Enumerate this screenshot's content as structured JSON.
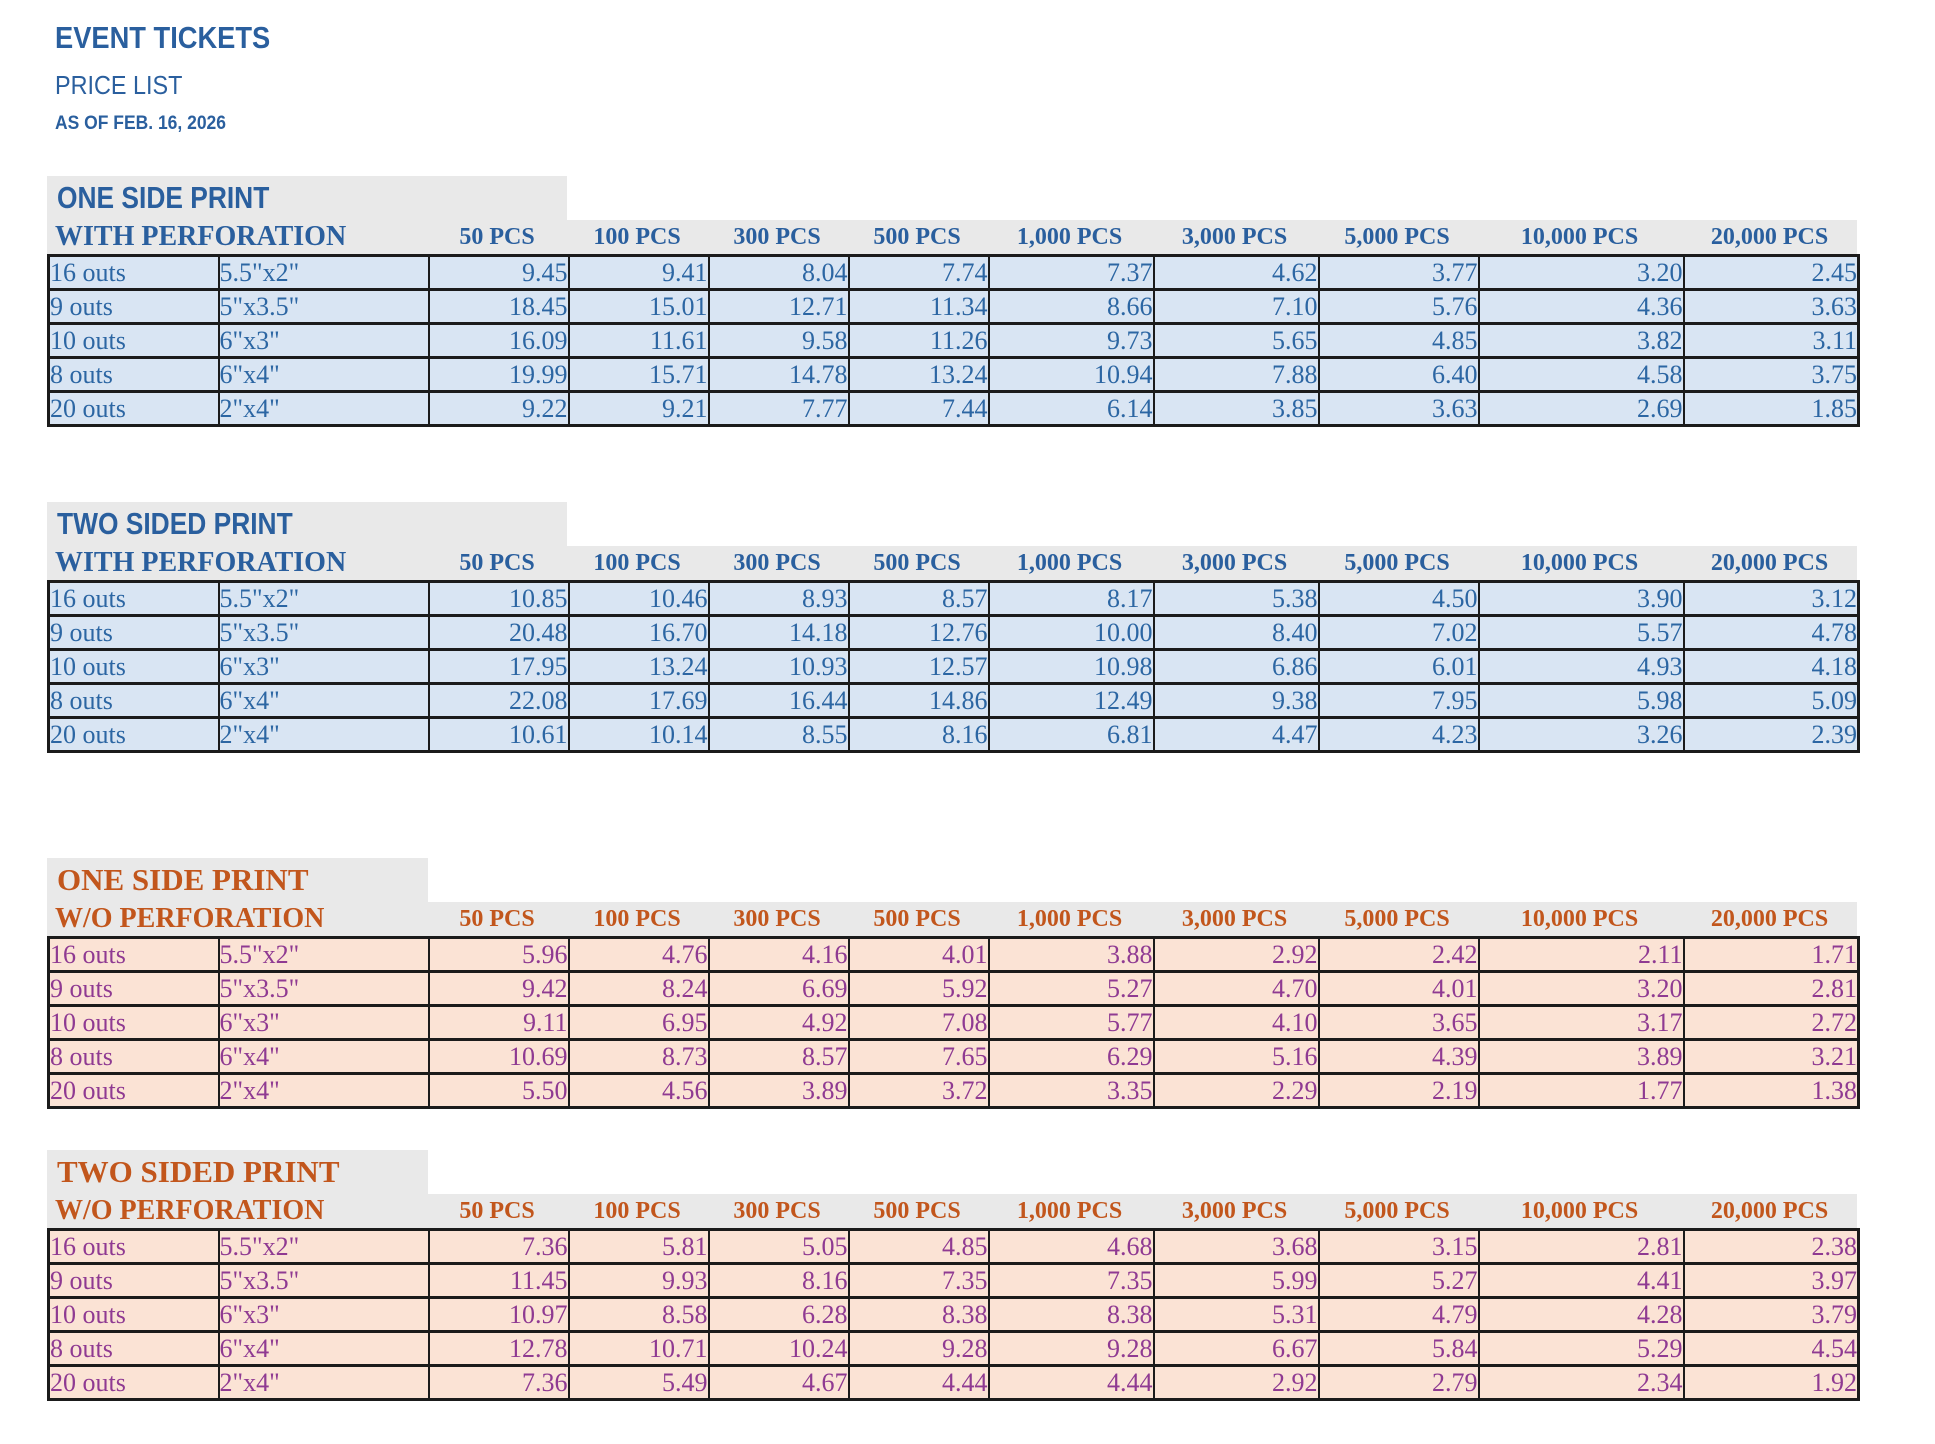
{
  "page": {
    "title": "EVENT TICKETS",
    "subtitle": "PRICE LIST",
    "as_of": "AS OF FEB. 16, 2026"
  },
  "quantity_headers": [
    "50 PCS",
    "100 PCS",
    "300 PCS",
    "500 PCS",
    "1,000 PCS",
    "3,000 PCS",
    "5,000 PCS",
    "10,000 PCS",
    "20,000 PCS"
  ],
  "colors": {
    "blue_heading": "#2a5f9e",
    "blue_cell_text": "#2c66a3",
    "blue_cell_bg": "#d9e5f3",
    "orange_heading": "#c2561c",
    "purple_cell_text": "#8f3a92",
    "peach_cell_bg": "#fbe3d5",
    "band_bg": "#e9e9e9",
    "border": "#1b1b1b"
  },
  "tables": [
    {
      "title": "ONE SIDE PRINT",
      "perforation_label": "WITH PERFORATION",
      "theme": "blue",
      "rows": [
        {
          "outs": "16 outs",
          "size": "5.5\"x2\"",
          "prices": [
            "9.45",
            "9.41",
            "8.04",
            "7.74",
            "7.37",
            "4.62",
            "3.77",
            "3.20",
            "2.45"
          ]
        },
        {
          "outs": "9 outs",
          "size": "5\"x3.5\"",
          "prices": [
            "18.45",
            "15.01",
            "12.71",
            "11.34",
            "8.66",
            "7.10",
            "5.76",
            "4.36",
            "3.63"
          ]
        },
        {
          "outs": "10 outs",
          "size": "6\"x3\"",
          "prices": [
            "16.09",
            "11.61",
            "9.58",
            "11.26",
            "9.73",
            "5.65",
            "4.85",
            "3.82",
            "3.11"
          ]
        },
        {
          "outs": "8 outs",
          "size": "6\"x4\"",
          "prices": [
            "19.99",
            "15.71",
            "14.78",
            "13.24",
            "10.94",
            "7.88",
            "6.40",
            "4.58",
            "3.75"
          ]
        },
        {
          "outs": "20 outs",
          "size": "2\"x4\"",
          "prices": [
            "9.22",
            "9.21",
            "7.77",
            "7.44",
            "6.14",
            "3.85",
            "3.63",
            "2.69",
            "1.85"
          ]
        }
      ]
    },
    {
      "title": "TWO SIDED PRINT",
      "perforation_label": "WITH PERFORATION",
      "theme": "blue",
      "rows": [
        {
          "outs": "16 outs",
          "size": "5.5\"x2\"",
          "prices": [
            "10.85",
            "10.46",
            "8.93",
            "8.57",
            "8.17",
            "5.38",
            "4.50",
            "3.90",
            "3.12"
          ]
        },
        {
          "outs": "9 outs",
          "size": "5\"x3.5\"",
          "prices": [
            "20.48",
            "16.70",
            "14.18",
            "12.76",
            "10.00",
            "8.40",
            "7.02",
            "5.57",
            "4.78"
          ]
        },
        {
          "outs": "10 outs",
          "size": "6\"x3\"",
          "prices": [
            "17.95",
            "13.24",
            "10.93",
            "12.57",
            "10.98",
            "6.86",
            "6.01",
            "4.93",
            "4.18"
          ]
        },
        {
          "outs": "8 outs",
          "size": "6\"x4\"",
          "prices": [
            "22.08",
            "17.69",
            "16.44",
            "14.86",
            "12.49",
            "9.38",
            "7.95",
            "5.98",
            "5.09"
          ]
        },
        {
          "outs": "20 outs",
          "size": "2\"x4\"",
          "prices": [
            "10.61",
            "10.14",
            "8.55",
            "8.16",
            "6.81",
            "4.47",
            "4.23",
            "3.26",
            "2.39"
          ]
        }
      ]
    },
    {
      "title": "ONE SIDE PRINT",
      "perforation_label": "W/O PERFORATION",
      "theme": "orange",
      "rows": [
        {
          "outs": "16 outs",
          "size": "5.5\"x2\"",
          "prices": [
            "5.96",
            "4.76",
            "4.16",
            "4.01",
            "3.88",
            "2.92",
            "2.42",
            "2.11",
            "1.71"
          ]
        },
        {
          "outs": "9 outs",
          "size": "5\"x3.5\"",
          "prices": [
            "9.42",
            "8.24",
            "6.69",
            "5.92",
            "5.27",
            "4.70",
            "4.01",
            "3.20",
            "2.81"
          ]
        },
        {
          "outs": "10 outs",
          "size": "6\"x3\"",
          "prices": [
            "9.11",
            "6.95",
            "4.92",
            "7.08",
            "5.77",
            "4.10",
            "3.65",
            "3.17",
            "2.72"
          ]
        },
        {
          "outs": "8 outs",
          "size": "6\"x4\"",
          "prices": [
            "10.69",
            "8.73",
            "8.57",
            "7.65",
            "6.29",
            "5.16",
            "4.39",
            "3.89",
            "3.21"
          ]
        },
        {
          "outs": "20 outs",
          "size": "2\"x4\"",
          "prices": [
            "5.50",
            "4.56",
            "3.89",
            "3.72",
            "3.35",
            "2.29",
            "2.19",
            "1.77",
            "1.38"
          ]
        }
      ]
    },
    {
      "title": "TWO SIDED PRINT",
      "perforation_label": "W/O PERFORATION",
      "theme": "orange",
      "rows": [
        {
          "outs": "16 outs",
          "size": "5.5\"x2\"",
          "prices": [
            "7.36",
            "5.81",
            "5.05",
            "4.85",
            "4.68",
            "3.68",
            "3.15",
            "2.81",
            "2.38"
          ]
        },
        {
          "outs": "9 outs",
          "size": "5\"x3.5\"",
          "prices": [
            "11.45",
            "9.93",
            "8.16",
            "7.35",
            "7.35",
            "5.99",
            "5.27",
            "4.41",
            "3.97"
          ]
        },
        {
          "outs": "10 outs",
          "size": "6\"x3\"",
          "prices": [
            "10.97",
            "8.58",
            "6.28",
            "8.38",
            "8.38",
            "5.31",
            "4.79",
            "4.28",
            "3.79"
          ]
        },
        {
          "outs": "8 outs",
          "size": "6\"x4\"",
          "prices": [
            "12.78",
            "10.71",
            "10.24",
            "9.28",
            "9.28",
            "6.67",
            "5.84",
            "5.29",
            "4.54"
          ]
        },
        {
          "outs": "20 outs",
          "size": "2\"x4\"",
          "prices": [
            "7.36",
            "5.49",
            "4.67",
            "4.44",
            "4.44",
            "2.92",
            "2.79",
            "2.34",
            "1.92"
          ]
        }
      ]
    }
  ]
}
